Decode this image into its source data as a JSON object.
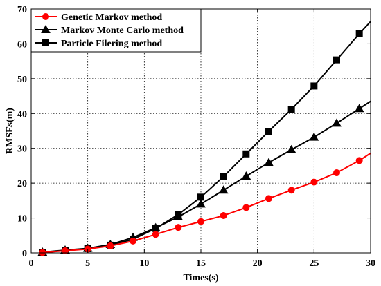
{
  "chart_data": {
    "type": "line",
    "title": "",
    "xlabel": "Times(s)",
    "ylabel": "RMSEs(m)",
    "xlim": [
      0,
      30
    ],
    "ylim": [
      0,
      70
    ],
    "xticks": [
      0,
      5,
      10,
      15,
      20,
      25,
      30
    ],
    "yticks": [
      0,
      10,
      20,
      30,
      40,
      50,
      60,
      70
    ],
    "grid": true,
    "legend_position": "top-left",
    "series": [
      {
        "name": "Genetic Markov method",
        "color": "#ff0000",
        "marker": "circle",
        "x": [
          1,
          3,
          5,
          7,
          9,
          11,
          13,
          15,
          17,
          19,
          21,
          23,
          25,
          27,
          29
        ],
        "y": [
          0.1,
          0.6,
          1.1,
          2.0,
          3.4,
          5.3,
          7.3,
          9.0,
          10.7,
          13.0,
          15.6,
          18.0,
          20.3,
          23.0,
          26.5
        ],
        "line_x": [
          1,
          3,
          5,
          7,
          9,
          11,
          13,
          15,
          17,
          19,
          21,
          23,
          25,
          27,
          29,
          30
        ],
        "line_y": [
          0.1,
          0.6,
          1.1,
          2.0,
          3.4,
          5.3,
          7.3,
          9.0,
          10.7,
          13.0,
          15.6,
          18.0,
          20.3,
          23.0,
          26.5,
          28.6
        ]
      },
      {
        "name": "Markov Monte Carlo method",
        "color": "#000000",
        "marker": "triangle",
        "x": [
          1,
          3,
          5,
          7,
          9,
          11,
          13,
          15,
          17,
          19,
          21,
          23,
          25,
          27,
          29
        ],
        "y": [
          0.2,
          0.8,
          1.3,
          2.4,
          4.4,
          7.2,
          10.3,
          14.0,
          18.0,
          22.0,
          25.9,
          29.6,
          33.2,
          37.2,
          41.4
        ],
        "line_x": [
          1,
          3,
          5,
          7,
          9,
          11,
          13,
          15,
          17,
          19,
          21,
          23,
          25,
          27,
          29,
          30
        ],
        "line_y": [
          0.2,
          0.8,
          1.3,
          2.4,
          4.4,
          7.2,
          10.3,
          14.0,
          18.0,
          22.0,
          25.9,
          29.6,
          33.2,
          37.2,
          41.4,
          43.5
        ]
      },
      {
        "name": "Particle Filering method",
        "color": "#000000",
        "marker": "square",
        "x": [
          1,
          3,
          5,
          7,
          9,
          11,
          13,
          15,
          17,
          19,
          21,
          23,
          25,
          27,
          29
        ],
        "y": [
          0.1,
          0.7,
          1.2,
          2.2,
          3.9,
          7.0,
          11.0,
          16.0,
          21.9,
          28.4,
          34.9,
          41.2,
          47.9,
          55.4,
          62.9
        ],
        "line_x": [
          1,
          3,
          5,
          7,
          9,
          11,
          13,
          15,
          17,
          19,
          21,
          23,
          25,
          27,
          29,
          30
        ],
        "line_y": [
          0.1,
          0.7,
          1.2,
          2.2,
          3.9,
          7.0,
          11.0,
          16.0,
          21.9,
          28.4,
          34.9,
          41.2,
          47.9,
          55.4,
          62.9,
          66.4
        ]
      }
    ]
  }
}
